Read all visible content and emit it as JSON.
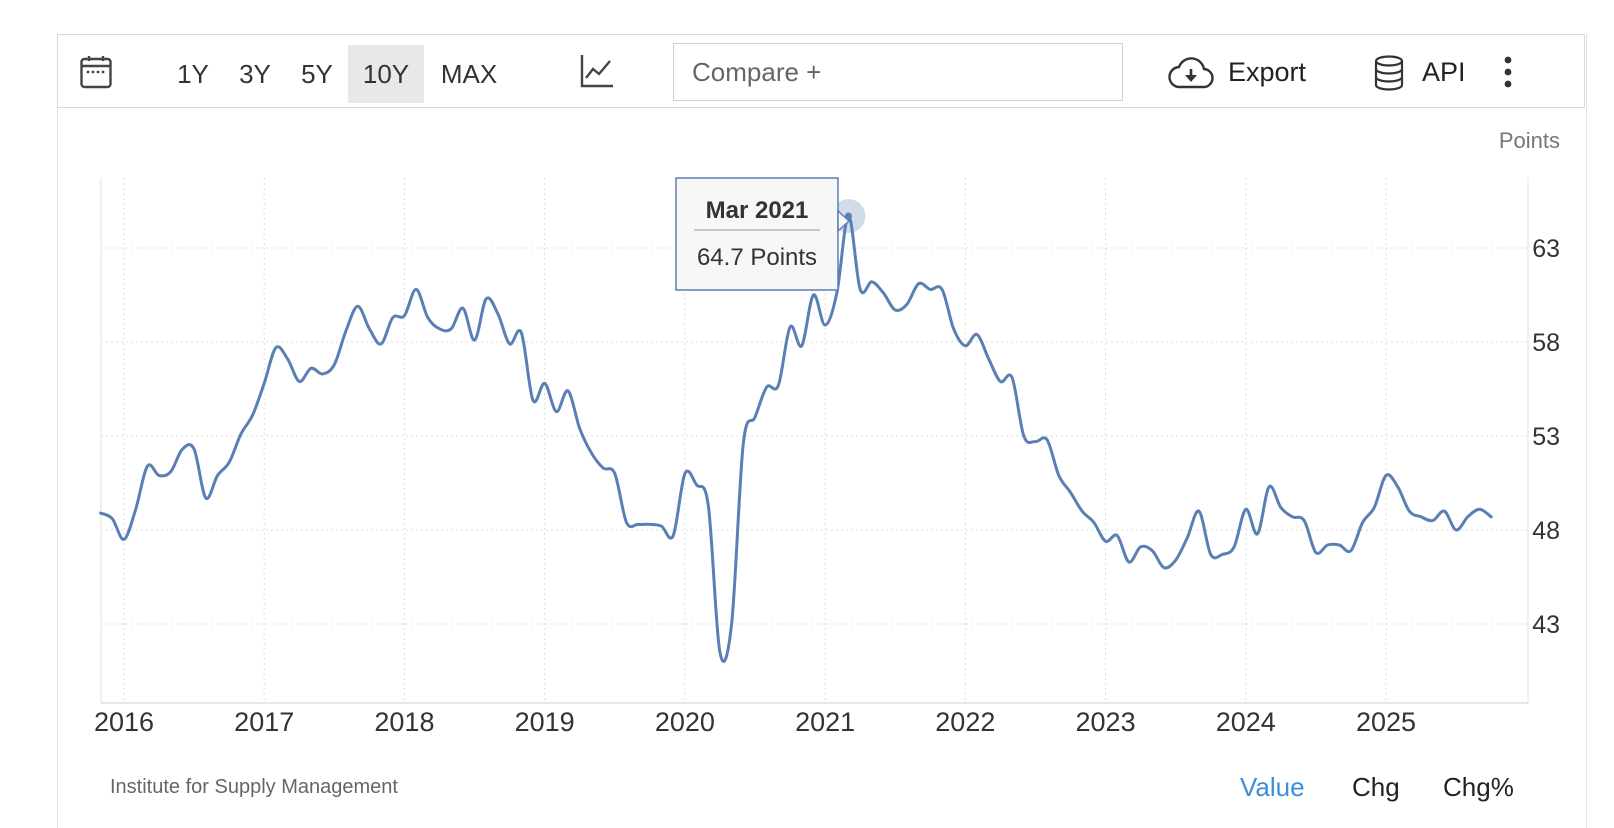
{
  "toolbar": {
    "ranges": [
      "1Y",
      "3Y",
      "5Y",
      "10Y",
      "MAX"
    ],
    "active_range": "10Y",
    "compare_placeholder": "Compare +",
    "export_label": "Export",
    "api_label": "API"
  },
  "chart": {
    "unit_label": "Points",
    "source": "Institute for Supply Management",
    "tooltip": {
      "date": "Mar 2021",
      "value_text": "64.7 Points"
    }
  },
  "view_modes": {
    "value": "Value",
    "chg": "Chg",
    "chg_pct": "Chg%",
    "active": "Value"
  },
  "colors": {
    "line": "#5a7fb4",
    "accent": "#3d8ed8",
    "grid": "#dddddd"
  },
  "chart_data": {
    "type": "line",
    "title": "",
    "xlabel": "",
    "ylabel": "Points",
    "x_ticks": [
      "2016",
      "2017",
      "2018",
      "2019",
      "2020",
      "2021",
      "2022",
      "2023",
      "2024",
      "2025"
    ],
    "y_ticks": [
      43,
      48,
      53,
      58,
      63
    ],
    "ylim": [
      39.7,
      66.8
    ],
    "xlim": [
      "2015-11",
      "2025-10"
    ],
    "grid": true,
    "legend": "none",
    "highlight": {
      "x": "2021-03",
      "y": 64.7
    },
    "series": [
      {
        "points": [
          [
            "2015-11",
            48.9
          ],
          [
            "2015-12",
            48.6
          ],
          [
            "2016-01",
            47.5
          ],
          [
            "2016-02",
            49.1
          ],
          [
            "2016-03",
            51.4
          ],
          [
            "2016-04",
            50.9
          ],
          [
            "2016-05",
            51.1
          ],
          [
            "2016-06",
            52.3
          ],
          [
            "2016-07",
            52.3
          ],
          [
            "2016-08",
            49.7
          ],
          [
            "2016-09",
            50.9
          ],
          [
            "2016-10",
            51.6
          ],
          [
            "2016-11",
            53.1
          ],
          [
            "2016-12",
            54.1
          ],
          [
            "2017-01",
            55.8
          ],
          [
            "2017-02",
            57.7
          ],
          [
            "2017-03",
            57.1
          ],
          [
            "2017-04",
            55.9
          ],
          [
            "2017-05",
            56.6
          ],
          [
            "2017-06",
            56.3
          ],
          [
            "2017-07",
            56.8
          ],
          [
            "2017-08",
            58.6
          ],
          [
            "2017-09",
            59.9
          ],
          [
            "2017-10",
            58.7
          ],
          [
            "2017-11",
            57.9
          ],
          [
            "2017-12",
            59.3
          ],
          [
            "2018-01",
            59.4
          ],
          [
            "2018-02",
            60.8
          ],
          [
            "2018-03",
            59.3
          ],
          [
            "2018-04",
            58.7
          ],
          [
            "2018-05",
            58.7
          ],
          [
            "2018-06",
            59.8
          ],
          [
            "2018-07",
            58.1
          ],
          [
            "2018-08",
            60.3
          ],
          [
            "2018-09",
            59.5
          ],
          [
            "2018-10",
            57.9
          ],
          [
            "2018-11",
            58.5
          ],
          [
            "2018-12",
            54.9
          ],
          [
            "2019-01",
            55.8
          ],
          [
            "2019-02",
            54.3
          ],
          [
            "2019-03",
            55.4
          ],
          [
            "2019-04",
            53.4
          ],
          [
            "2019-05",
            52.1
          ],
          [
            "2019-06",
            51.3
          ],
          [
            "2019-07",
            51.0
          ],
          [
            "2019-08",
            48.4
          ],
          [
            "2019-09",
            48.3
          ],
          [
            "2019-10",
            48.3
          ],
          [
            "2019-11",
            48.2
          ],
          [
            "2019-12",
            47.7
          ],
          [
            "2020-01",
            51.0
          ],
          [
            "2020-02",
            50.4
          ],
          [
            "2020-03",
            49.3
          ],
          [
            "2020-04",
            41.5
          ],
          [
            "2020-05",
            43.0
          ],
          [
            "2020-06",
            52.6
          ],
          [
            "2020-07",
            54.0
          ],
          [
            "2020-08",
            55.6
          ],
          [
            "2020-09",
            55.7
          ],
          [
            "2020-10",
            58.8
          ],
          [
            "2020-11",
            57.8
          ],
          [
            "2020-12",
            60.5
          ],
          [
            "2021-01",
            58.9
          ],
          [
            "2021-02",
            60.6
          ],
          [
            "2021-03",
            64.7
          ],
          [
            "2021-04",
            60.8
          ],
          [
            "2021-05",
            61.2
          ],
          [
            "2021-06",
            60.6
          ],
          [
            "2021-07",
            59.7
          ],
          [
            "2021-08",
            60.0
          ],
          [
            "2021-09",
            61.1
          ],
          [
            "2021-10",
            60.8
          ],
          [
            "2021-11",
            60.8
          ],
          [
            "2021-12",
            58.7
          ],
          [
            "2022-01",
            57.8
          ],
          [
            "2022-02",
            58.4
          ],
          [
            "2022-03",
            57.1
          ],
          [
            "2022-04",
            55.9
          ],
          [
            "2022-05",
            56.1
          ],
          [
            "2022-06",
            53.0
          ],
          [
            "2022-07",
            52.7
          ],
          [
            "2022-08",
            52.8
          ],
          [
            "2022-09",
            50.9
          ],
          [
            "2022-10",
            50.0
          ],
          [
            "2022-11",
            49.0
          ],
          [
            "2022-12",
            48.4
          ],
          [
            "2023-01",
            47.4
          ],
          [
            "2023-02",
            47.7
          ],
          [
            "2023-03",
            46.3
          ],
          [
            "2023-04",
            47.1
          ],
          [
            "2023-05",
            46.9
          ],
          [
            "2023-06",
            46.0
          ],
          [
            "2023-07",
            46.4
          ],
          [
            "2023-08",
            47.6
          ],
          [
            "2023-09",
            49.0
          ],
          [
            "2023-10",
            46.7
          ],
          [
            "2023-11",
            46.7
          ],
          [
            "2023-12",
            47.1
          ],
          [
            "2024-01",
            49.1
          ],
          [
            "2024-02",
            47.8
          ],
          [
            "2024-03",
            50.3
          ],
          [
            "2024-04",
            49.2
          ],
          [
            "2024-05",
            48.7
          ],
          [
            "2024-06",
            48.5
          ],
          [
            "2024-07",
            46.8
          ],
          [
            "2024-08",
            47.2
          ],
          [
            "2024-09",
            47.2
          ],
          [
            "2024-10",
            46.9
          ],
          [
            "2024-11",
            48.4
          ],
          [
            "2024-12",
            49.2
          ],
          [
            "2025-01",
            50.9
          ],
          [
            "2025-02",
            50.3
          ],
          [
            "2025-03",
            49.0
          ],
          [
            "2025-04",
            48.7
          ],
          [
            "2025-05",
            48.5
          ],
          [
            "2025-06",
            49.0
          ],
          [
            "2025-07",
            48.0
          ],
          [
            "2025-08",
            48.7
          ],
          [
            "2025-09",
            49.1
          ],
          [
            "2025-10",
            48.7
          ]
        ]
      }
    ]
  }
}
